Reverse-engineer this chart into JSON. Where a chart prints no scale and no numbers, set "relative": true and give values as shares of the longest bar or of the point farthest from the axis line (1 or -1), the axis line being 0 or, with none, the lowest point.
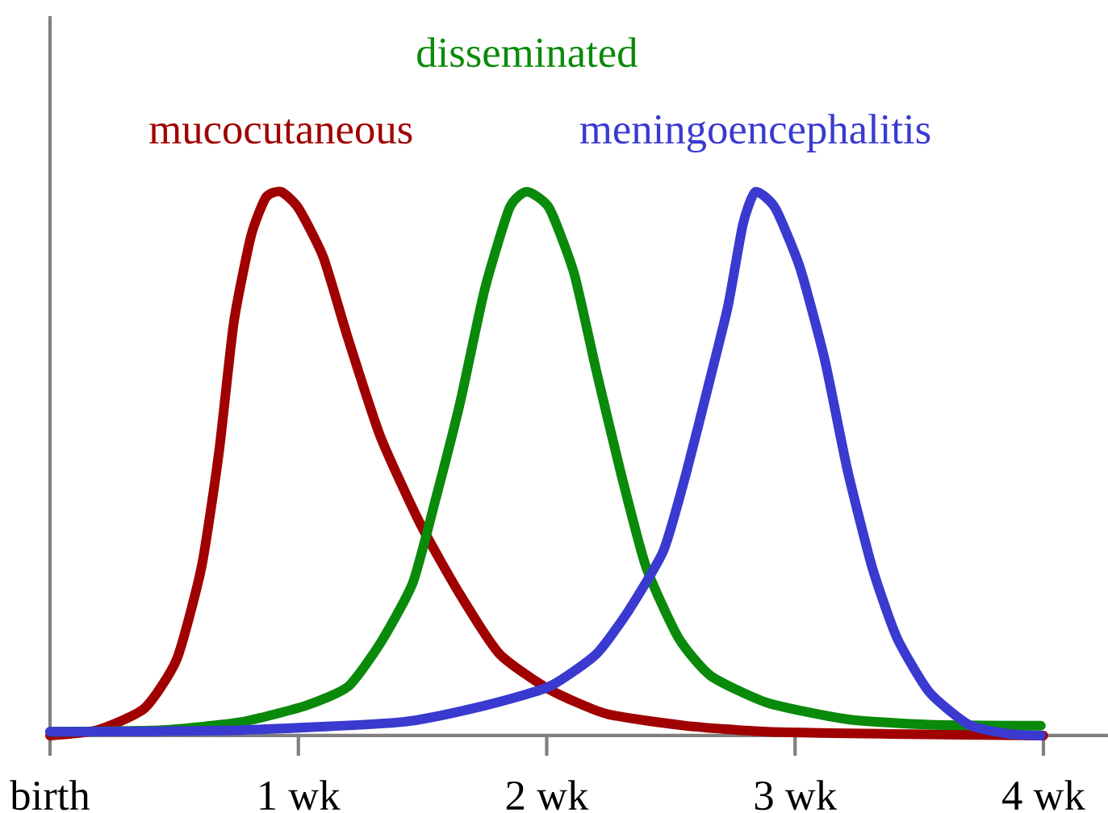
{
  "chart_data": {
    "type": "line",
    "relative": true,
    "grid": false,
    "marker": "none",
    "line_style": "solid",
    "xlim": [
      0,
      4.26
    ],
    "xticks": [
      {
        "value": 0,
        "label": "birth"
      },
      {
        "value": 1,
        "label": "1 wk"
      },
      {
        "value": 2,
        "label": "2 wk"
      },
      {
        "value": 3,
        "label": "3 wk"
      },
      {
        "value": 4,
        "label": "4 wk"
      }
    ],
    "series": [
      {
        "name": "mucocutaneous",
        "color": "#a00000",
        "x": [
          0,
          0.19,
          0.38,
          0.51,
          0.61,
          0.68,
          0.74,
          0.81,
          0.87,
          0.93,
          1.0,
          1.1,
          1.2,
          1.33,
          1.49,
          1.65,
          1.81,
          2.01,
          2.24,
          2.56,
          2.89,
          3.38,
          4.0
        ],
        "values": [
          0,
          0.01,
          0.05,
          0.14,
          0.31,
          0.52,
          0.76,
          0.92,
          0.99,
          1.0,
          0.97,
          0.88,
          0.73,
          0.55,
          0.39,
          0.26,
          0.15,
          0.085,
          0.04,
          0.018,
          0.007,
          0.003,
          0
        ]
      },
      {
        "name": "disseminated",
        "color": "#0a8a0a",
        "x": [
          0,
          0.45,
          0.77,
          1.03,
          1.2,
          1.33,
          1.46,
          1.55,
          1.65,
          1.75,
          1.85,
          1.92,
          2.01,
          2.11,
          2.2,
          2.3,
          2.4,
          2.53,
          2.66,
          2.89,
          3.21,
          3.54,
          3.99
        ],
        "values": [
          0.007,
          0.01,
          0.025,
          0.055,
          0.09,
          0.17,
          0.28,
          0.43,
          0.61,
          0.82,
          0.97,
          1.0,
          0.97,
          0.85,
          0.67,
          0.48,
          0.31,
          0.18,
          0.11,
          0.06,
          0.03,
          0.02,
          0.018
        ]
      },
      {
        "name": "meningoencephalitis",
        "color": "#3a3ad0",
        "x": [
          0,
          0.77,
          1.42,
          1.75,
          2.01,
          2.2,
          2.33,
          2.47,
          2.56,
          2.66,
          2.73,
          2.79,
          2.84,
          2.92,
          3.02,
          3.12,
          3.21,
          3.31,
          3.41,
          3.54,
          3.7,
          3.86,
          3.99
        ],
        "values": [
          0.007,
          0.01,
          0.025,
          0.055,
          0.09,
          0.15,
          0.23,
          0.34,
          0.48,
          0.66,
          0.79,
          0.94,
          1.0,
          0.97,
          0.86,
          0.69,
          0.49,
          0.31,
          0.18,
          0.08,
          0.02,
          0.003,
          0
        ]
      }
    ]
  }
}
